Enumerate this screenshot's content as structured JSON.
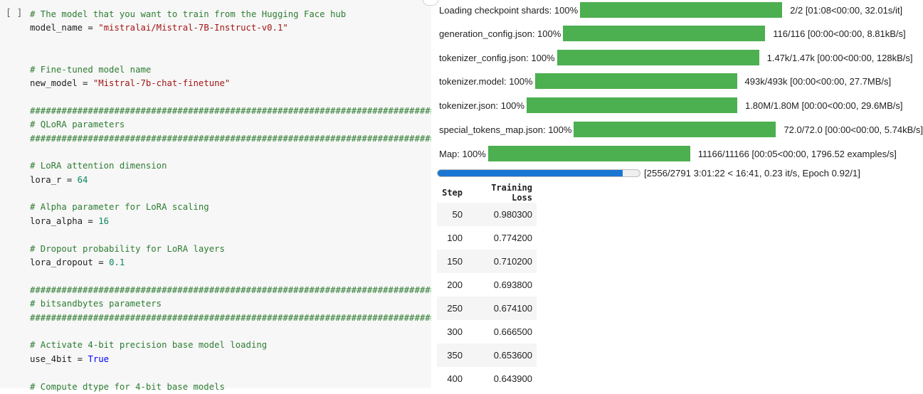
{
  "code_cell": {
    "prompt": "[ ]",
    "lines": [
      [
        {
          "t": "c",
          "v": "# The model that you want to train from the Hugging Face hub"
        }
      ],
      [
        {
          "t": "p",
          "v": "model_name = "
        },
        {
          "t": "s",
          "v": "\"mistralai/Mistral-7B-Instruct-v0.1\""
        }
      ],
      [],
      [],
      [
        {
          "t": "c",
          "v": "# Fine-tuned model name"
        }
      ],
      [
        {
          "t": "p",
          "v": "new_model = "
        },
        {
          "t": "s",
          "v": "\"Mistral-7b-chat-finetune\""
        }
      ],
      [],
      [
        {
          "t": "c",
          "v": "################################################################################"
        }
      ],
      [
        {
          "t": "c",
          "v": "# QLoRA parameters"
        }
      ],
      [
        {
          "t": "c",
          "v": "################################################################################"
        }
      ],
      [],
      [
        {
          "t": "c",
          "v": "# LoRA attention dimension"
        }
      ],
      [
        {
          "t": "p",
          "v": "lora_r = "
        },
        {
          "t": "n",
          "v": "64"
        }
      ],
      [],
      [
        {
          "t": "c",
          "v": "# Alpha parameter for LoRA scaling"
        }
      ],
      [
        {
          "t": "p",
          "v": "lora_alpha = "
        },
        {
          "t": "n",
          "v": "16"
        }
      ],
      [],
      [
        {
          "t": "c",
          "v": "# Dropout probability for LoRA layers"
        }
      ],
      [
        {
          "t": "p",
          "v": "lora_dropout = "
        },
        {
          "t": "n",
          "v": "0.1"
        }
      ],
      [],
      [
        {
          "t": "c",
          "v": "################################################################################"
        }
      ],
      [
        {
          "t": "c",
          "v": "# bitsandbytes parameters"
        }
      ],
      [
        {
          "t": "c",
          "v": "################################################################################"
        }
      ],
      [],
      [
        {
          "t": "c",
          "v": "# Activate 4-bit precision base model loading"
        }
      ],
      [
        {
          "t": "p",
          "v": "use_4bit = "
        },
        {
          "t": "k",
          "v": "True"
        }
      ],
      [],
      [
        {
          "t": "c",
          "v": "# Compute dtype for 4-bit base models"
        }
      ]
    ]
  },
  "progress_bars": [
    {
      "desc": "Loading checkpoint shards: 100%",
      "stats": "2/2  [01:08<00:00,  32.01s/it]",
      "fraction": 1.0
    },
    {
      "desc": "generation_config.json: 100%",
      "stats": "116/116  [00:00<00:00,  8.81kB/s]",
      "fraction": 1.0
    },
    {
      "desc": "tokenizer_config.json: 100%",
      "stats": "1.47k/1.47k  [00:00<00:00,  128kB/s]",
      "fraction": 1.0
    },
    {
      "desc": "tokenizer.model: 100%",
      "stats": "493k/493k  [00:00<00:00,  27.7MB/s]",
      "fraction": 1.0
    },
    {
      "desc": "tokenizer.json: 100%",
      "stats": "1.80M/1.80M  [00:00<00:00,  29.6MB/s]",
      "fraction": 1.0
    },
    {
      "desc": "special_tokens_map.json: 100%",
      "stats": "72.0/72.0  [00:00<00:00,  5.74kB/s]",
      "fraction": 1.0
    },
    {
      "desc": "Map: 100%",
      "stats": "11166/11166  [00:05<00:00,  1796.52  examples/s]",
      "fraction": 1.0
    }
  ],
  "training_progress": {
    "text": "[2556/2791 3:01:22 < 16:41, 0.23 it/s, Epoch 0.92/1]",
    "fraction": 0.916
  },
  "loss_table": {
    "headers": [
      "Step",
      "Training Loss"
    ],
    "rows": [
      [
        "50",
        "0.980300"
      ],
      [
        "100",
        "0.774200"
      ],
      [
        "150",
        "0.710200"
      ],
      [
        "200",
        "0.693800"
      ],
      [
        "250",
        "0.674100"
      ],
      [
        "300",
        "0.666500"
      ],
      [
        "350",
        "0.653600"
      ],
      [
        "400",
        "0.643900"
      ]
    ]
  },
  "colors": {
    "progress_green": "#4caf50",
    "training_bar_blue": "#1976d2",
    "comment_green": "#2e7d32",
    "string_red": "#a31515",
    "number_green": "#098658",
    "keyword_blue": "#0000ff"
  }
}
